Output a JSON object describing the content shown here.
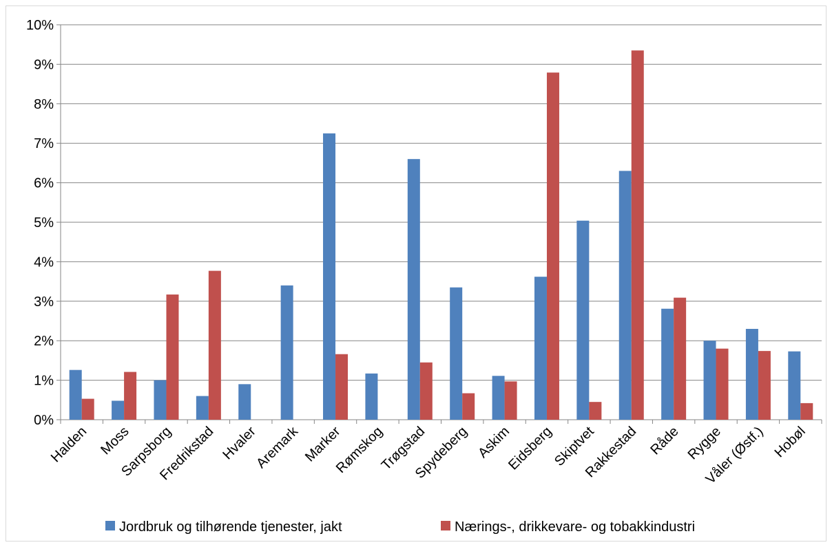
{
  "chart_data": {
    "type": "bar",
    "categories": [
      "Halden",
      "Moss",
      "Sarpsborg",
      "Fredrikstad",
      "Hvaler",
      "Aremark",
      "Marker",
      "Rømskog",
      "Trøgstad",
      "Spydeberg",
      "Askim",
      "Eidsberg",
      "Skiptvet",
      "Rakkestad",
      "Råde",
      "Rygge",
      "Våler (Østf.)",
      "Hobøl"
    ],
    "series": [
      {
        "name": "Jordbruk og tilhørende tjenester, jakt",
        "color": "#4f81bd",
        "values": [
          1.26,
          0.48,
          1.0,
          0.6,
          0.9,
          3.4,
          7.25,
          1.17,
          6.6,
          3.35,
          1.11,
          3.62,
          5.04,
          6.3,
          2.81,
          2.0,
          2.3,
          1.73
        ]
      },
      {
        "name": "Nærings-, drikkevare- og tobakkindustri",
        "color": "#c0504d",
        "values": [
          0.53,
          1.21,
          3.17,
          3.77,
          0,
          0,
          1.66,
          0,
          1.45,
          0.67,
          0.97,
          8.79,
          0.45,
          9.35,
          3.09,
          1.8,
          1.74,
          0.42
        ]
      }
    ],
    "ylim": [
      0,
      10
    ],
    "yticks": [
      "0%",
      "1%",
      "2%",
      "3%",
      "4%",
      "5%",
      "6%",
      "7%",
      "8%",
      "9%",
      "10%"
    ],
    "title": "",
    "xlabel": "",
    "ylabel": "",
    "grid": true,
    "legend_position": "bottom"
  }
}
